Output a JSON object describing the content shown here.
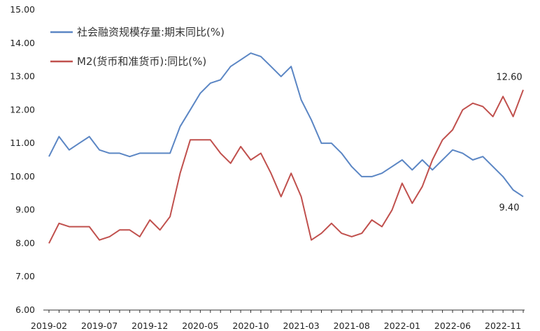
{
  "chart_data": {
    "type": "line",
    "title": "",
    "xlabel": "",
    "ylabel": "",
    "ylim": [
      6,
      15
    ],
    "yticks": [
      "6.00",
      "7.00",
      "8.00",
      "9.00",
      "10.00",
      "11.00",
      "12.00",
      "13.00",
      "14.00",
      "15.00"
    ],
    "xtick_labels": [
      "2019-02",
      "2019-07",
      "2019-12",
      "2020-05",
      "2020-10",
      "2021-03",
      "2021-08",
      "2022-01",
      "2022-06",
      "2022-11"
    ],
    "grid": false,
    "legend_position": "top-left",
    "categories": [
      "2019-02",
      "2019-03",
      "2019-04",
      "2019-05",
      "2019-06",
      "2019-07",
      "2019-08",
      "2019-09",
      "2019-10",
      "2019-11",
      "2019-12",
      "2020-01",
      "2020-02",
      "2020-03",
      "2020-04",
      "2020-05",
      "2020-06",
      "2020-07",
      "2020-08",
      "2020-09",
      "2020-10",
      "2020-11",
      "2020-12",
      "2021-01",
      "2021-02",
      "2021-03",
      "2021-04",
      "2021-05",
      "2021-06",
      "2021-07",
      "2021-08",
      "2021-09",
      "2021-10",
      "2021-11",
      "2021-12",
      "2022-01",
      "2022-02",
      "2022-03",
      "2022-04",
      "2022-05",
      "2022-06",
      "2022-07",
      "2022-08",
      "2022-09",
      "2022-10",
      "2022-11",
      "2022-12",
      "2023-01"
    ],
    "series": [
      {
        "name": "社会融资规模存量:期末同比(%)",
        "color": "#5b86c4",
        "values": [
          10.6,
          11.2,
          10.8,
          11.0,
          11.2,
          10.8,
          10.7,
          10.7,
          10.6,
          10.7,
          10.7,
          10.7,
          10.7,
          11.5,
          12.0,
          12.5,
          12.8,
          12.9,
          13.3,
          13.5,
          13.7,
          13.6,
          13.3,
          13.0,
          13.3,
          12.3,
          11.7,
          11.0,
          11.0,
          10.7,
          10.3,
          10.0,
          10.0,
          10.1,
          10.3,
          10.5,
          10.2,
          10.5,
          10.2,
          10.5,
          10.8,
          10.7,
          10.5,
          10.6,
          10.3,
          10.0,
          9.6,
          9.4
        ]
      },
      {
        "name": "M2(货币和准货币):同比(%)",
        "color": "#c0504d",
        "values": [
          8.0,
          8.6,
          8.5,
          8.5,
          8.5,
          8.1,
          8.2,
          8.4,
          8.4,
          8.2,
          8.7,
          8.4,
          8.8,
          10.1,
          11.1,
          11.1,
          11.1,
          10.7,
          10.4,
          10.9,
          10.5,
          10.7,
          10.1,
          9.4,
          10.1,
          9.4,
          8.1,
          8.3,
          8.6,
          8.3,
          8.2,
          8.3,
          8.7,
          8.5,
          9.0,
          9.8,
          9.2,
          9.7,
          10.5,
          11.1,
          11.4,
          12.0,
          12.2,
          12.1,
          11.8,
          12.4,
          11.8,
          12.6
        ]
      }
    ],
    "annotations": [
      {
        "series_index": 1,
        "point_index": 47,
        "text": "12.60"
      },
      {
        "series_index": 0,
        "point_index": 47,
        "text": "9.40"
      }
    ]
  }
}
